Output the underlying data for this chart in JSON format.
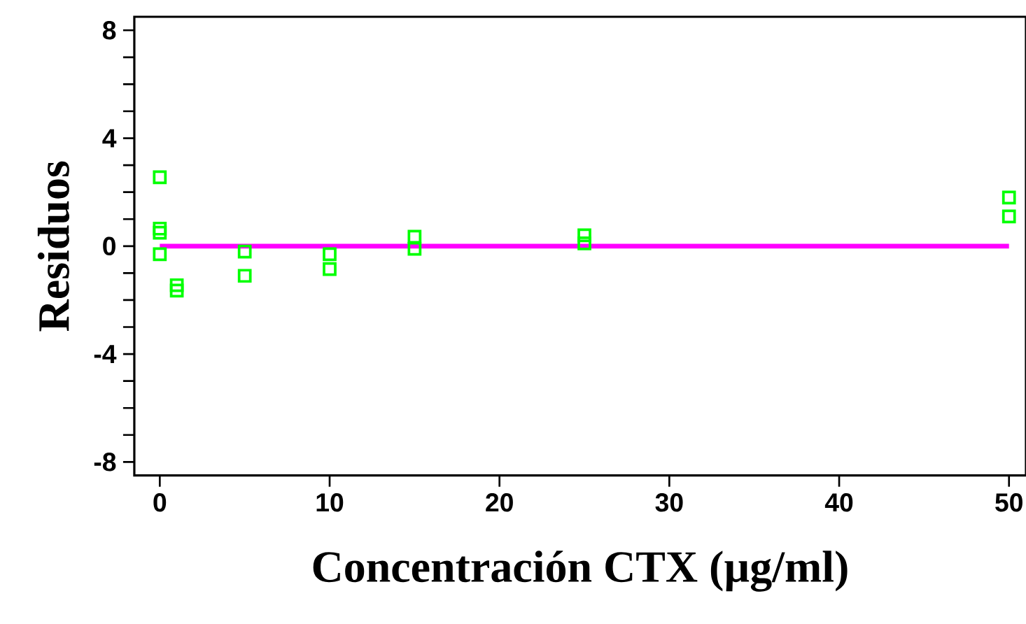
{
  "chart_data": {
    "type": "scatter",
    "xlabel": "Concentración CTX (µg/ml)",
    "ylabel": "Residuos",
    "xlim": [
      -1.5,
      51
    ],
    "ylim": [
      -8.5,
      8.5
    ],
    "xticks": [
      0,
      10,
      20,
      30,
      40,
      50
    ],
    "yticks": [
      8,
      {
        "value": 7,
        "label": null
      },
      {
        "value": 6,
        "label": null
      },
      {
        "value": 5,
        "label": null
      },
      4,
      {
        "value": 3,
        "label": null
      },
      {
        "value": 2,
        "label": null
      },
      {
        "value": 1,
        "label": null
      },
      0,
      {
        "value": -1,
        "label": null
      },
      {
        "value": -2,
        "label": null
      },
      {
        "value": -3,
        "label": null
      },
      -4,
      {
        "value": -5,
        "label": null
      },
      {
        "value": -6,
        "label": null
      },
      {
        "value": -7,
        "label": null
      },
      -8
    ],
    "grid": false,
    "series": [
      {
        "marker": "square",
        "color": "#00ff00",
        "x": [
          0,
          0,
          0,
          0,
          1,
          1,
          5,
          5,
          10,
          10,
          15,
          15,
          25,
          25,
          50,
          50
        ],
        "values": [
          2.55,
          0.65,
          0.5,
          -0.3,
          -1.45,
          -1.65,
          -0.2,
          -1.1,
          -0.3,
          -0.85,
          0.35,
          -0.1,
          0.4,
          0.1,
          1.8,
          1.1
        ]
      },
      {
        "type": "line",
        "color": "#ff00ff",
        "x": [
          0,
          50
        ],
        "values": [
          0,
          0
        ]
      }
    ]
  }
}
